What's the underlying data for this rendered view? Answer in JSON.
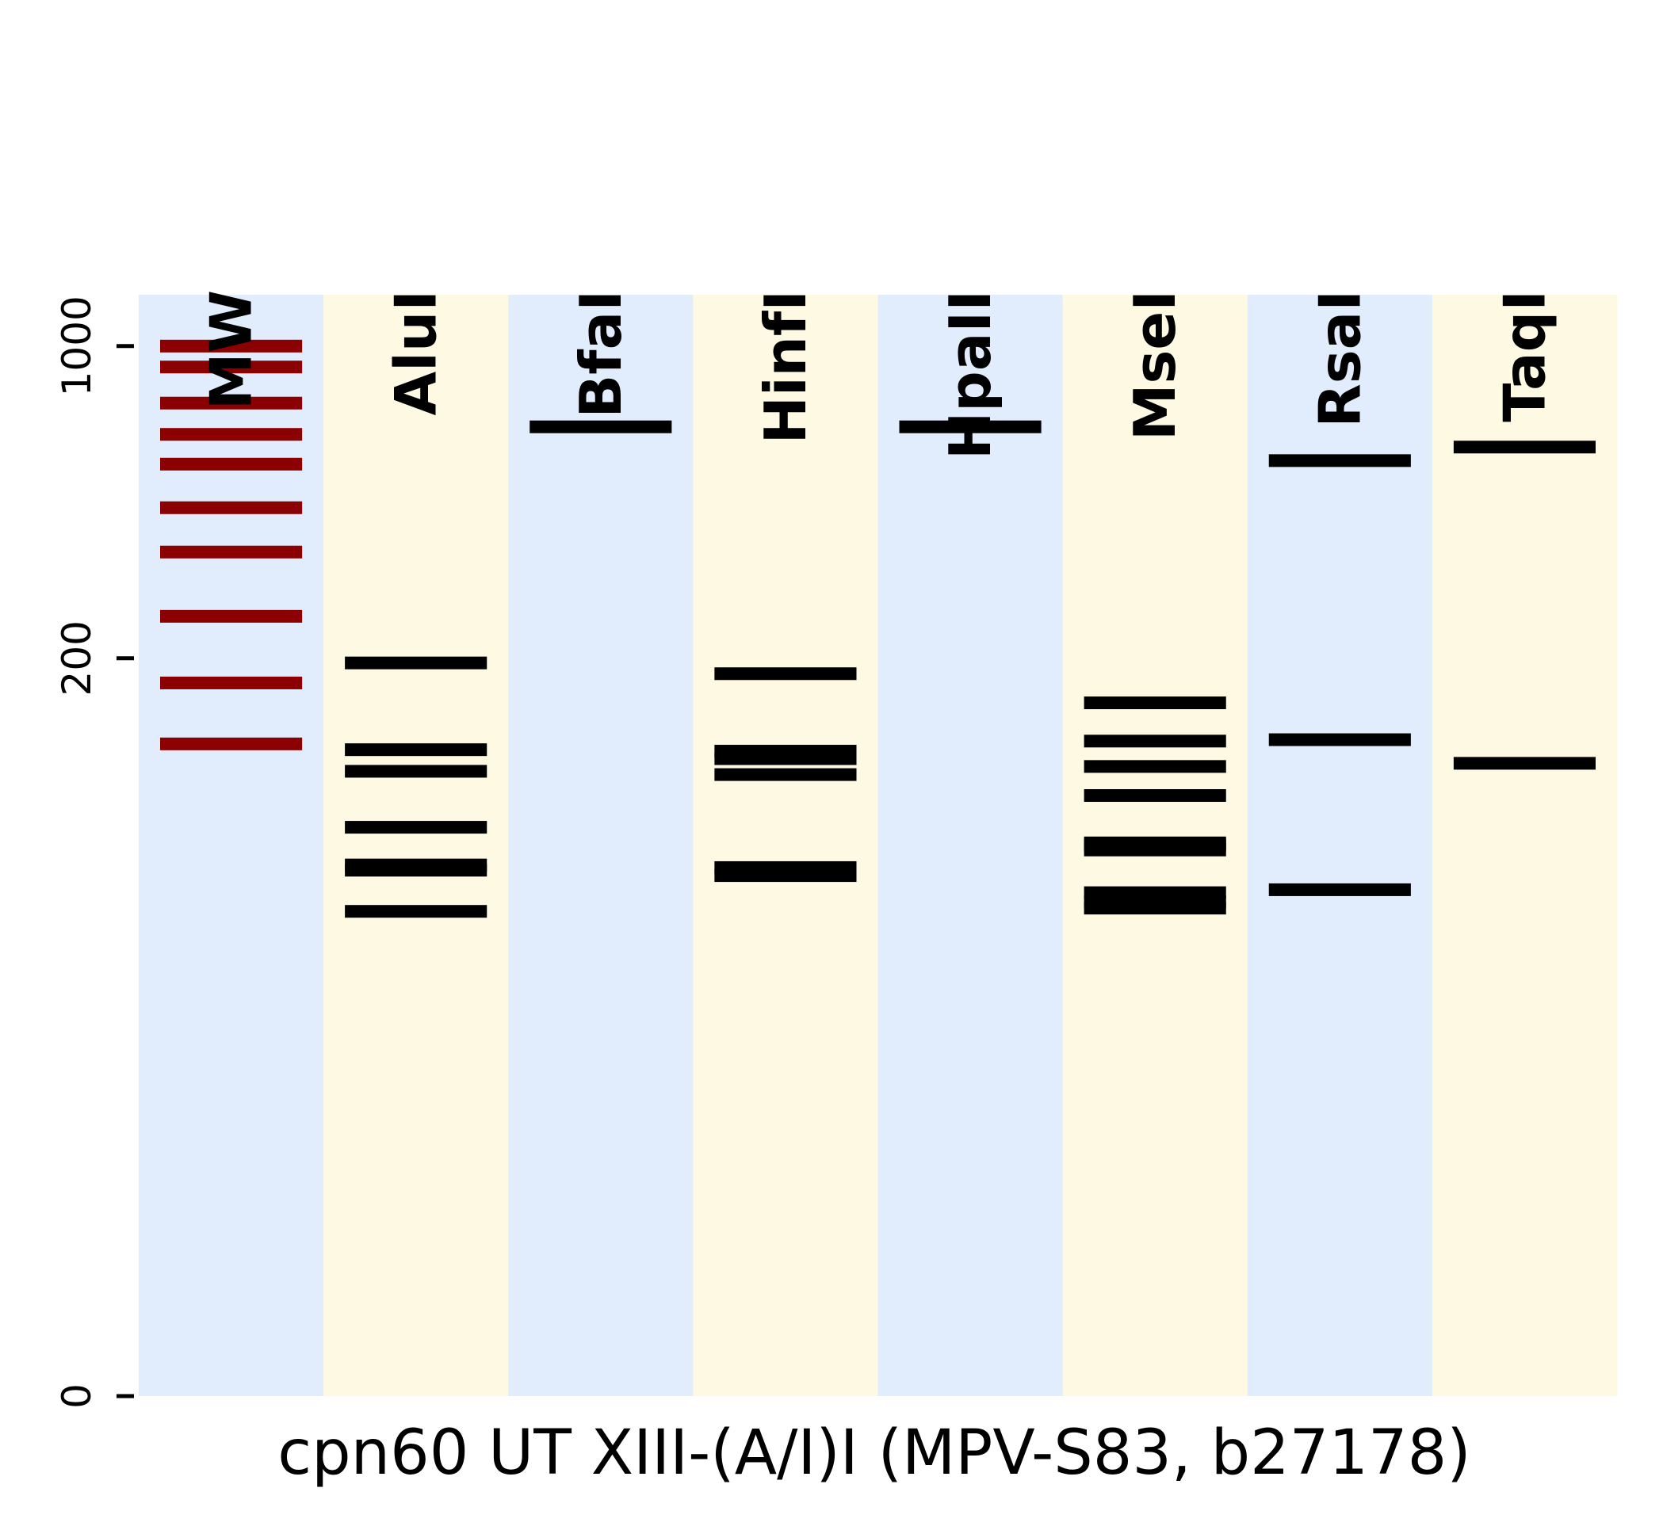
{
  "chart_data": {
    "type": "gel",
    "title": "",
    "xlabel": "cpn60 UT XIII-(A/I)I (MPV-S83, b27178)",
    "ylabel": "",
    "yscale": "log",
    "ylim": [
      0,
      1000
    ],
    "y_ticks": [
      {
        "value": 0,
        "label": "0"
      },
      {
        "value": 200,
        "label": "200"
      },
      {
        "value": 1000,
        "label": "1000"
      }
    ],
    "grid": false,
    "lane_background_colors": [
      "#e1ecfc",
      "#fdf9e3"
    ],
    "ladder_color": "#8b0000",
    "band_color": "#000000",
    "lanes": [
      {
        "name": "MW",
        "ladder": true,
        "bands": [
          1000,
          900,
          750,
          640,
          550,
          440,
          350,
          250,
          175,
          125
        ]
      },
      {
        "name": "AluI",
        "ladder": false,
        "bands": [
          195,
          121,
          107,
          77,
          61,
          59,
          45
        ]
      },
      {
        "name": "BfaI",
        "ladder": false,
        "bands": [
          665
        ]
      },
      {
        "name": "HinfI",
        "ladder": false,
        "bands": [
          184,
          120,
          115,
          105,
          60,
          57
        ]
      },
      {
        "name": "HpaII",
        "ladder": false,
        "bands": [
          665
        ]
      },
      {
        "name": "MseI",
        "ladder": false,
        "bands": [
          157,
          127,
          110,
          93,
          70,
          69,
          67,
          51,
          48,
          46
        ]
      },
      {
        "name": "RsaI",
        "ladder": false,
        "bands": [
          560,
          128,
          52
        ]
      },
      {
        "name": "TaqI",
        "ladder": false,
        "bands": [
          600,
          112
        ]
      }
    ]
  }
}
